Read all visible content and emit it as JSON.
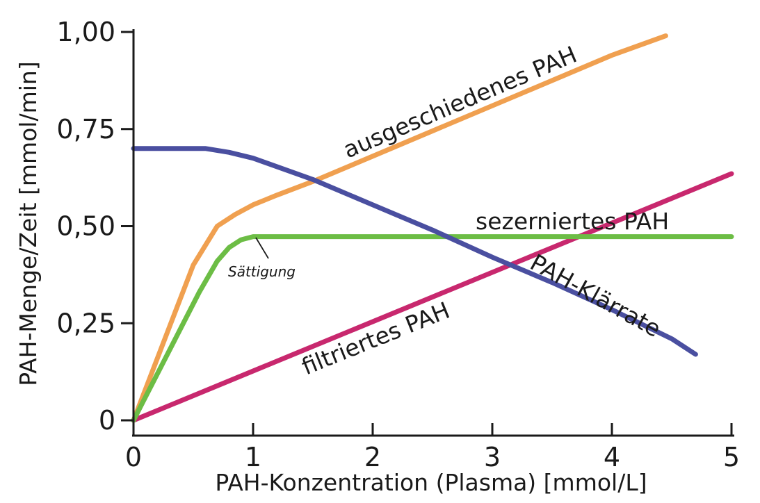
{
  "chart_data": {
    "type": "line",
    "xlabel": "PAH-Konzentration (Plasma) [mmol/L]",
    "ylabel": "PAH-Menge/Zeit [mmol/min]",
    "xlim": [
      0,
      5
    ],
    "ylim": [
      0,
      1
    ],
    "x_ticks": [
      "0",
      "1",
      "2",
      "3",
      "4",
      "5"
    ],
    "y_ticks": [
      "0",
      "0,25",
      "0,50",
      "0,75",
      "1,00"
    ],
    "x_tick_values": [
      0,
      1,
      2,
      3,
      4,
      5
    ],
    "y_tick_values": [
      0,
      0.25,
      0.5,
      0.75,
      1.0
    ],
    "grid": false,
    "legend": "none (series labeled inline)",
    "series": [
      {
        "key": "ausgeschieden",
        "name": "ausgeschiedenes PAH",
        "color": "#f0a050",
        "x": [
          0,
          0.3,
          0.5,
          0.7,
          0.85,
          1.0,
          1.2,
          1.5,
          2.0,
          2.5,
          3.0,
          3.5,
          4.0,
          4.45
        ],
        "y": [
          0,
          0.24,
          0.4,
          0.5,
          0.53,
          0.555,
          0.58,
          0.615,
          0.68,
          0.745,
          0.81,
          0.875,
          0.94,
          0.99
        ]
      },
      {
        "key": "sezerniert",
        "name": "sezerniertes PAH",
        "color": "#6cbd45",
        "x": [
          0,
          0.3,
          0.55,
          0.7,
          0.8,
          0.9,
          1.0,
          1.5,
          2.0,
          3.0,
          4.0,
          5.0
        ],
        "y": [
          0,
          0.18,
          0.33,
          0.41,
          0.445,
          0.465,
          0.473,
          0.473,
          0.473,
          0.473,
          0.473,
          0.473
        ]
      },
      {
        "key": "filtriert",
        "name": "filtriertes PAH",
        "color": "#c8286e",
        "x": [
          0,
          5
        ],
        "y": [
          0,
          0.635
        ]
      },
      {
        "key": "klaerrate",
        "name": "PAH-Klärrate",
        "color": "#4a4fa0",
        "x": [
          0,
          0.6,
          0.8,
          1.0,
          1.5,
          2.0,
          2.5,
          3.0,
          3.5,
          4.0,
          4.5,
          4.7
        ],
        "y": [
          0.7,
          0.7,
          0.69,
          0.675,
          0.62,
          0.555,
          0.49,
          0.42,
          0.355,
          0.285,
          0.21,
          0.17
        ]
      }
    ],
    "annotations": [
      {
        "text": "Sättigung",
        "points_to": {
          "x": 1.02,
          "y": 0.47
        }
      }
    ]
  }
}
